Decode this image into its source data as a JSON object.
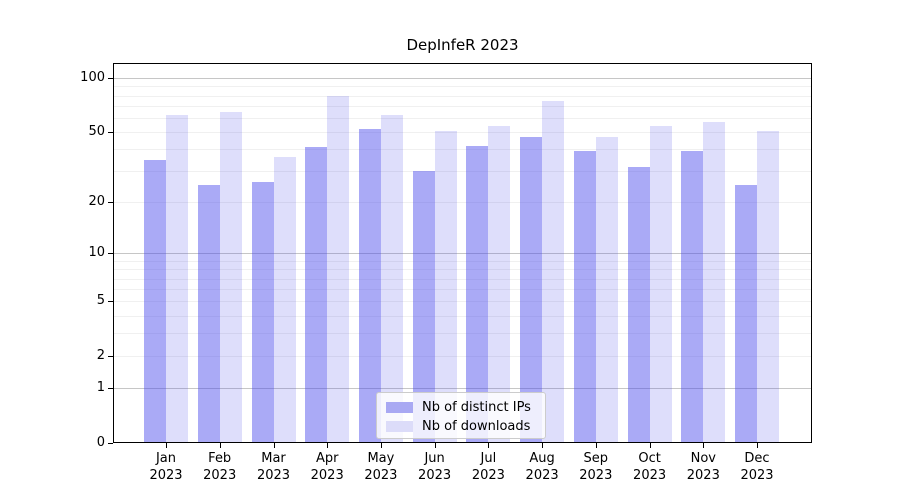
{
  "title": "DepInfeR 2023",
  "colors": {
    "bar_ips": "rgba(70,70,235,0.46)",
    "bar_downloads": "rgba(70,70,235,0.18)",
    "legend_ips_swatch": "#a9a9f3",
    "legend_downloads_swatch": "#dcdcf9",
    "grid_major": "#c6c6c6",
    "grid_minor": "#f0f0f0",
    "axis": "#000000"
  },
  "chart_data": {
    "type": "bar",
    "title": "DepInfeR 2023",
    "categories": [
      "Jan 2023",
      "Feb 2023",
      "Mar 2023",
      "Apr 2023",
      "May 2023",
      "Jun 2023",
      "Jul 2023",
      "Aug 2023",
      "Sep 2023",
      "Oct 2023",
      "Nov 2023",
      "Dec 2023"
    ],
    "series": [
      {
        "name": "Nb of distinct IPs",
        "values": [
          35,
          25,
          26,
          41,
          52,
          30,
          42,
          47,
          39,
          32,
          39,
          25
        ]
      },
      {
        "name": "Nb of downloads",
        "values": [
          62,
          65,
          36,
          80,
          62,
          51,
          54,
          75,
          47,
          54,
          57,
          51
        ]
      }
    ],
    "yscale": "log1p",
    "xlabel": "",
    "ylabel": "",
    "y_ticks": [
      0,
      1,
      2,
      5,
      10,
      20,
      50,
      100
    ],
    "minor_gridlines": [
      2,
      3,
      4,
      5,
      6,
      7,
      8,
      9,
      20,
      30,
      40,
      50,
      60,
      70,
      80,
      90
    ],
    "major_gridlines": [
      1,
      10,
      100
    ],
    "ylim": [
      0,
      122
    ],
    "grid": true,
    "legend_position": "lower center",
    "legend_entries": [
      "Nb of distinct IPs",
      "Nb of downloads"
    ]
  }
}
